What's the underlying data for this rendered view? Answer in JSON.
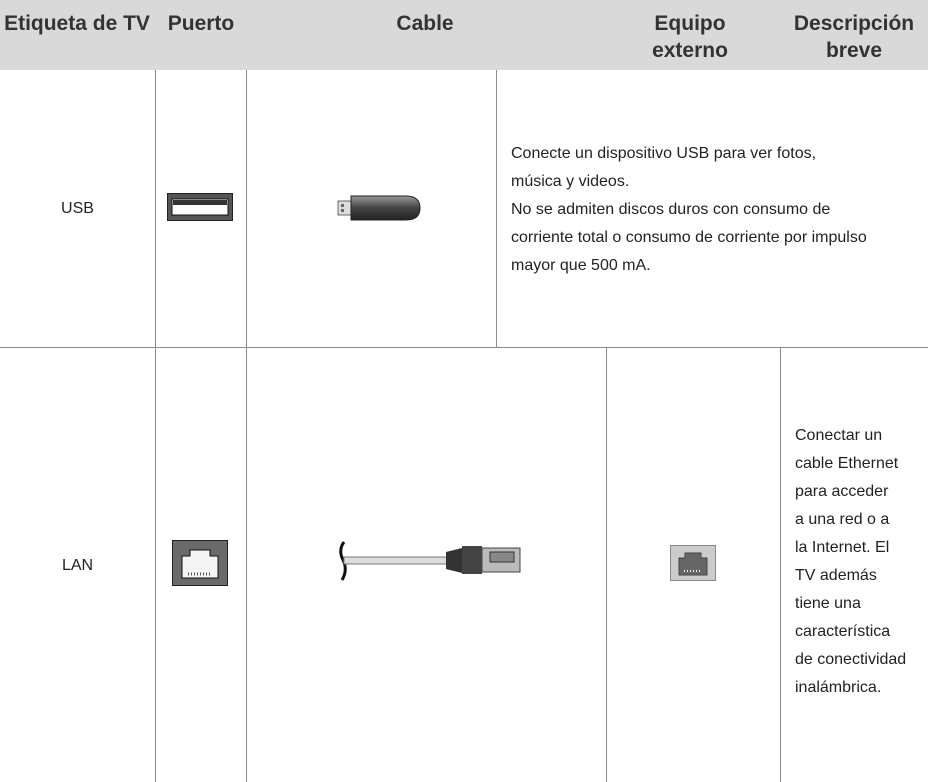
{
  "table": {
    "headers": [
      "Etiqueta de TV",
      "Puerto",
      "Cable",
      "Equipo externo",
      "Descripción breve"
    ],
    "rows": [
      {
        "label": "USB",
        "description": [
          "Conecte un dispositivo USB para ver fotos,",
          "música y videos.",
          "No se admiten discos duros con consumo de",
          "corriente total o consumo de corriente por impulso",
          "mayor que 500 mA."
        ]
      },
      {
        "label": "LAN",
        "description": [
          "Conectar un",
          "cable Ethernet",
          "para acceder",
          "a una red o a",
          "la Internet. El",
          "TV además",
          "tiene una",
          "característica",
          "de conectividad",
          "inalámbrica."
        ]
      }
    ]
  }
}
